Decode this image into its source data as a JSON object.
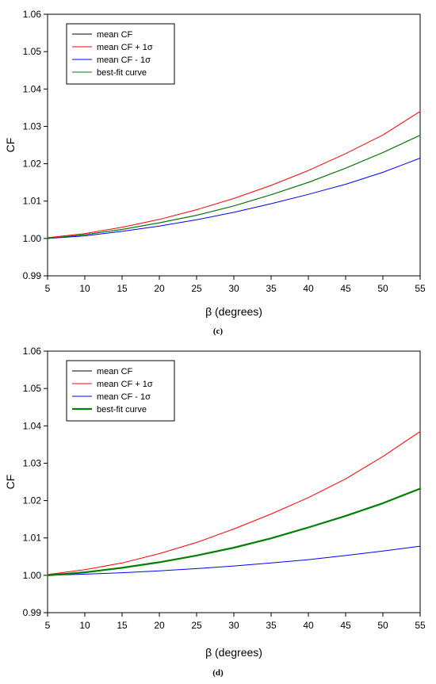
{
  "colors": {
    "mean": "#000000",
    "plus": "#ff0000",
    "minus": "#0000ff",
    "fit": "#008000"
  },
  "chart_data": [
    {
      "type": "line",
      "caption": "(c)",
      "xlabel": "β (degrees)",
      "ylabel": "CF",
      "xlim": [
        5,
        55
      ],
      "ylim": [
        0.99,
        1.06
      ],
      "xticks": [
        5,
        10,
        15,
        20,
        25,
        30,
        35,
        40,
        45,
        50,
        55
      ],
      "yticks": [
        0.99,
        1.0,
        1.01,
        1.02,
        1.03,
        1.04,
        1.05,
        1.06
      ],
      "ytick_labels": [
        "0.99",
        "1.00",
        "1.01",
        "1.02",
        "1.03",
        "1.04",
        "1.05",
        "1.06"
      ],
      "grid": false,
      "legend": "top-left",
      "x": [
        5,
        10,
        15,
        20,
        25,
        30,
        35,
        40,
        45,
        50,
        55
      ],
      "series": [
        {
          "name": "mean CF",
          "color": "#000000",
          "width": 1,
          "values": [
            1.0,
            1.001,
            1.0024,
            1.0042,
            1.0062,
            1.0087,
            1.0117,
            1.015,
            1.0188,
            1.023,
            1.0276
          ]
        },
        {
          "name": "mean CF + 1σ",
          "color": "#ff0000",
          "width": 1,
          "values": [
            1.0002,
            1.0013,
            1.003,
            1.0051,
            1.0077,
            1.0107,
            1.0142,
            1.0182,
            1.0227,
            1.0277,
            1.034
          ]
        },
        {
          "name": "mean CF - 1σ",
          "color": "#0000ff",
          "width": 1,
          "values": [
            1.0,
            1.0007,
            1.0019,
            1.0033,
            1.005,
            1.007,
            1.0093,
            1.0118,
            1.0145,
            1.0177,
            1.0215
          ]
        },
        {
          "name": "best-fit curve",
          "color": "#008000",
          "width": 1,
          "values": [
            1.0,
            1.001,
            1.0024,
            1.0042,
            1.0062,
            1.0087,
            1.0117,
            1.015,
            1.0188,
            1.023,
            1.0276
          ]
        }
      ]
    },
    {
      "type": "line",
      "caption": "(d)",
      "xlabel": "β (degrees)",
      "ylabel": "CF",
      "xlim": [
        5,
        55
      ],
      "ylim": [
        0.99,
        1.06
      ],
      "xticks": [
        5,
        10,
        15,
        20,
        25,
        30,
        35,
        40,
        45,
        50,
        55
      ],
      "yticks": [
        0.99,
        1.0,
        1.01,
        1.02,
        1.03,
        1.04,
        1.05,
        1.06
      ],
      "ytick_labels": [
        "0.99",
        "1.00",
        "1.01",
        "1.02",
        "1.03",
        "1.04",
        "1.05",
        "1.06"
      ],
      "grid": false,
      "legend": "top-left",
      "x": [
        5,
        10,
        15,
        20,
        25,
        30,
        35,
        40,
        45,
        50,
        55
      ],
      "series": [
        {
          "name": "mean CF",
          "color": "#000000",
          "width": 1,
          "values": [
            1.0,
            1.0008,
            1.002,
            1.0035,
            1.0053,
            1.0074,
            1.0099,
            1.0128,
            1.0159,
            1.0193,
            1.0232
          ]
        },
        {
          "name": "mean CF + 1σ",
          "color": "#ff0000",
          "width": 1,
          "values": [
            1.0002,
            1.0015,
            1.0033,
            1.0058,
            1.0088,
            1.0124,
            1.0164,
            1.0208,
            1.0258,
            1.0318,
            1.0385
          ]
        },
        {
          "name": "mean CF - 1σ",
          "color": "#0000ff",
          "width": 1,
          "values": [
            1.0,
            1.0003,
            1.0007,
            1.0012,
            1.0018,
            1.0025,
            1.0033,
            1.0042,
            1.0053,
            1.0065,
            1.0078
          ]
        },
        {
          "name": "best-fit curve",
          "color": "#008000",
          "width": 2.2,
          "values": [
            1.0,
            1.0008,
            1.002,
            1.0035,
            1.0053,
            1.0074,
            1.0099,
            1.0128,
            1.0159,
            1.0193,
            1.0232
          ]
        }
      ]
    }
  ]
}
